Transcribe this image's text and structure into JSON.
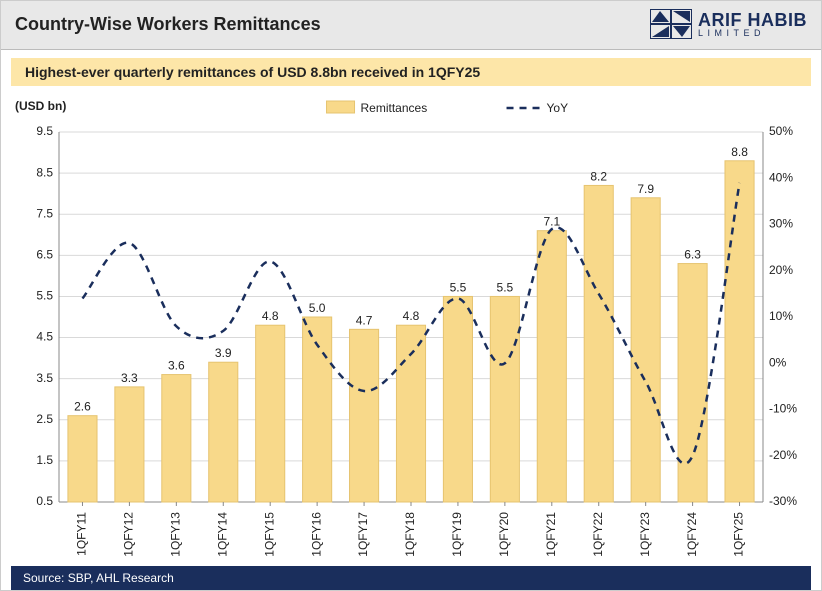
{
  "header": {
    "title": "Country-Wise Workers Remittances",
    "brand_main": "ARIF HABIB",
    "brand_sub": "LIMITED",
    "brand_color": "#1a2e5c"
  },
  "subtitle": "Highest-ever quarterly remittances of USD 8.8bn received in 1QFY25",
  "footer": "Source: SBP, AHL Research",
  "chart": {
    "type": "combo-bar-line",
    "unit_label": "(USD bn)",
    "legend": {
      "bar_label": "Remittances",
      "line_label": "YoY"
    },
    "categories": [
      "1QFY11",
      "1QFY12",
      "1QFY13",
      "1QFY14",
      "1QFY15",
      "1QFY16",
      "1QFY17",
      "1QFY18",
      "1QFY19",
      "1QFY20",
      "1QFY21",
      "1QFY22",
      "1QFY23",
      "1QFY24",
      "1QFY25"
    ],
    "bars": {
      "values": [
        2.6,
        3.3,
        3.6,
        3.9,
        4.8,
        5.0,
        4.7,
        4.8,
        5.5,
        5.5,
        7.1,
        8.2,
        7.9,
        6.3,
        8.8
      ],
      "color": "#f8d98a",
      "border": "#e6c470",
      "width_frac": 0.62
    },
    "line": {
      "values_pct": [
        14,
        26,
        8,
        7,
        22,
        4,
        -6,
        2,
        14,
        0,
        29,
        15,
        -4,
        -20,
        39
      ],
      "color": "#1a2e5c",
      "dash": "7,6",
      "width": 2.5
    },
    "y_left": {
      "min": 0.5,
      "max": 9.5,
      "step": 1.0
    },
    "y_right": {
      "min": -30,
      "max": 50,
      "step": 10,
      "suffix": "%"
    },
    "grid_color": "#d9d9d9",
    "axis_color": "#888",
    "background_color": "#ffffff"
  }
}
